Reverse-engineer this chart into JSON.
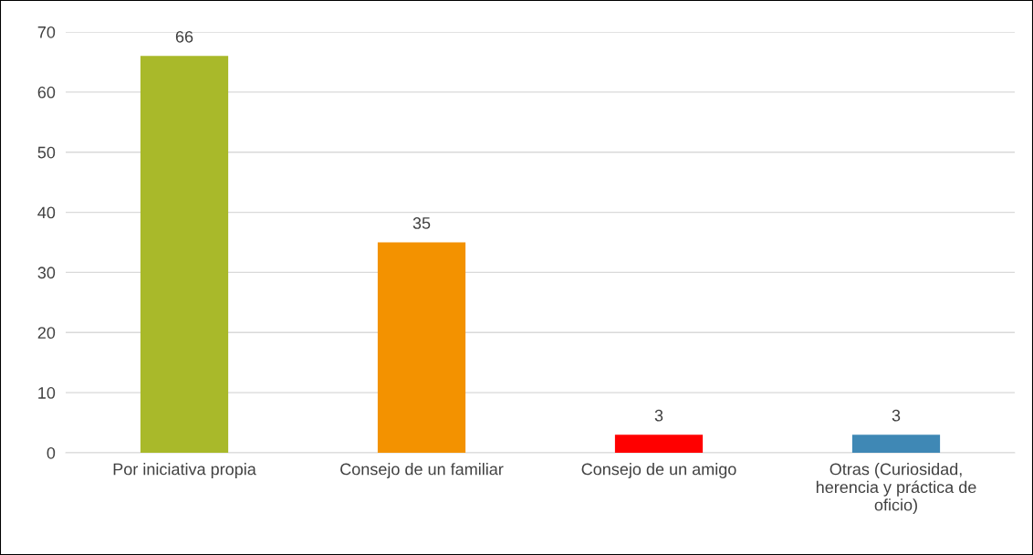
{
  "chart_data": {
    "type": "bar",
    "categories": [
      "Por iniciativa propia",
      "Consejo de un familiar",
      "Consejo de un amigo",
      "Otras (Curiosidad,\nherencia y práctica de\noficio)"
    ],
    "values": [
      66,
      35,
      3,
      3
    ],
    "colors": [
      "#a9b92a",
      "#f39200",
      "#ff0000",
      "#3f88b5"
    ],
    "ylim": [
      0,
      70
    ],
    "yticks": [
      0,
      10,
      20,
      30,
      40,
      50,
      60,
      70
    ],
    "grid": "y",
    "data_labels": true,
    "legend": false
  }
}
